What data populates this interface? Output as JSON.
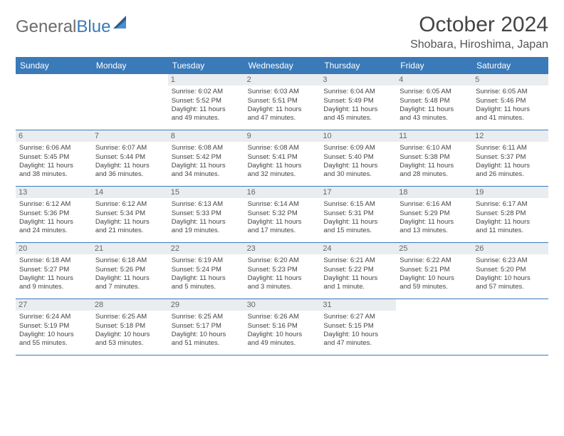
{
  "logo": {
    "word1": "General",
    "word2": "Blue"
  },
  "title": "October 2024",
  "location": "Shobara, Hiroshima, Japan",
  "colors": {
    "header_bg": "#3a7ab8",
    "header_text": "#ffffff",
    "daynum_bg": "#e9edf0",
    "daynum_text": "#666666",
    "cell_text": "#444444",
    "rule": "#3a7ab8",
    "logo_gray": "#6b6b6b",
    "logo_blue": "#3a7ab8",
    "page_bg": "#ffffff"
  },
  "day_names": [
    "Sunday",
    "Monday",
    "Tuesday",
    "Wednesday",
    "Thursday",
    "Friday",
    "Saturday"
  ],
  "weeks": [
    [
      null,
      null,
      {
        "n": "1",
        "sr": "Sunrise: 6:02 AM",
        "ss": "Sunset: 5:52 PM",
        "d1": "Daylight: 11 hours",
        "d2": "and 49 minutes."
      },
      {
        "n": "2",
        "sr": "Sunrise: 6:03 AM",
        "ss": "Sunset: 5:51 PM",
        "d1": "Daylight: 11 hours",
        "d2": "and 47 minutes."
      },
      {
        "n": "3",
        "sr": "Sunrise: 6:04 AM",
        "ss": "Sunset: 5:49 PM",
        "d1": "Daylight: 11 hours",
        "d2": "and 45 minutes."
      },
      {
        "n": "4",
        "sr": "Sunrise: 6:05 AM",
        "ss": "Sunset: 5:48 PM",
        "d1": "Daylight: 11 hours",
        "d2": "and 43 minutes."
      },
      {
        "n": "5",
        "sr": "Sunrise: 6:05 AM",
        "ss": "Sunset: 5:46 PM",
        "d1": "Daylight: 11 hours",
        "d2": "and 41 minutes."
      }
    ],
    [
      {
        "n": "6",
        "sr": "Sunrise: 6:06 AM",
        "ss": "Sunset: 5:45 PM",
        "d1": "Daylight: 11 hours",
        "d2": "and 38 minutes."
      },
      {
        "n": "7",
        "sr": "Sunrise: 6:07 AM",
        "ss": "Sunset: 5:44 PM",
        "d1": "Daylight: 11 hours",
        "d2": "and 36 minutes."
      },
      {
        "n": "8",
        "sr": "Sunrise: 6:08 AM",
        "ss": "Sunset: 5:42 PM",
        "d1": "Daylight: 11 hours",
        "d2": "and 34 minutes."
      },
      {
        "n": "9",
        "sr": "Sunrise: 6:08 AM",
        "ss": "Sunset: 5:41 PM",
        "d1": "Daylight: 11 hours",
        "d2": "and 32 minutes."
      },
      {
        "n": "10",
        "sr": "Sunrise: 6:09 AM",
        "ss": "Sunset: 5:40 PM",
        "d1": "Daylight: 11 hours",
        "d2": "and 30 minutes."
      },
      {
        "n": "11",
        "sr": "Sunrise: 6:10 AM",
        "ss": "Sunset: 5:38 PM",
        "d1": "Daylight: 11 hours",
        "d2": "and 28 minutes."
      },
      {
        "n": "12",
        "sr": "Sunrise: 6:11 AM",
        "ss": "Sunset: 5:37 PM",
        "d1": "Daylight: 11 hours",
        "d2": "and 26 minutes."
      }
    ],
    [
      {
        "n": "13",
        "sr": "Sunrise: 6:12 AM",
        "ss": "Sunset: 5:36 PM",
        "d1": "Daylight: 11 hours",
        "d2": "and 24 minutes."
      },
      {
        "n": "14",
        "sr": "Sunrise: 6:12 AM",
        "ss": "Sunset: 5:34 PM",
        "d1": "Daylight: 11 hours",
        "d2": "and 21 minutes."
      },
      {
        "n": "15",
        "sr": "Sunrise: 6:13 AM",
        "ss": "Sunset: 5:33 PM",
        "d1": "Daylight: 11 hours",
        "d2": "and 19 minutes."
      },
      {
        "n": "16",
        "sr": "Sunrise: 6:14 AM",
        "ss": "Sunset: 5:32 PM",
        "d1": "Daylight: 11 hours",
        "d2": "and 17 minutes."
      },
      {
        "n": "17",
        "sr": "Sunrise: 6:15 AM",
        "ss": "Sunset: 5:31 PM",
        "d1": "Daylight: 11 hours",
        "d2": "and 15 minutes."
      },
      {
        "n": "18",
        "sr": "Sunrise: 6:16 AM",
        "ss": "Sunset: 5:29 PM",
        "d1": "Daylight: 11 hours",
        "d2": "and 13 minutes."
      },
      {
        "n": "19",
        "sr": "Sunrise: 6:17 AM",
        "ss": "Sunset: 5:28 PM",
        "d1": "Daylight: 11 hours",
        "d2": "and 11 minutes."
      }
    ],
    [
      {
        "n": "20",
        "sr": "Sunrise: 6:18 AM",
        "ss": "Sunset: 5:27 PM",
        "d1": "Daylight: 11 hours",
        "d2": "and 9 minutes."
      },
      {
        "n": "21",
        "sr": "Sunrise: 6:18 AM",
        "ss": "Sunset: 5:26 PM",
        "d1": "Daylight: 11 hours",
        "d2": "and 7 minutes."
      },
      {
        "n": "22",
        "sr": "Sunrise: 6:19 AM",
        "ss": "Sunset: 5:24 PM",
        "d1": "Daylight: 11 hours",
        "d2": "and 5 minutes."
      },
      {
        "n": "23",
        "sr": "Sunrise: 6:20 AM",
        "ss": "Sunset: 5:23 PM",
        "d1": "Daylight: 11 hours",
        "d2": "and 3 minutes."
      },
      {
        "n": "24",
        "sr": "Sunrise: 6:21 AM",
        "ss": "Sunset: 5:22 PM",
        "d1": "Daylight: 11 hours",
        "d2": "and 1 minute."
      },
      {
        "n": "25",
        "sr": "Sunrise: 6:22 AM",
        "ss": "Sunset: 5:21 PM",
        "d1": "Daylight: 10 hours",
        "d2": "and 59 minutes."
      },
      {
        "n": "26",
        "sr": "Sunrise: 6:23 AM",
        "ss": "Sunset: 5:20 PM",
        "d1": "Daylight: 10 hours",
        "d2": "and 57 minutes."
      }
    ],
    [
      {
        "n": "27",
        "sr": "Sunrise: 6:24 AM",
        "ss": "Sunset: 5:19 PM",
        "d1": "Daylight: 10 hours",
        "d2": "and 55 minutes."
      },
      {
        "n": "28",
        "sr": "Sunrise: 6:25 AM",
        "ss": "Sunset: 5:18 PM",
        "d1": "Daylight: 10 hours",
        "d2": "and 53 minutes."
      },
      {
        "n": "29",
        "sr": "Sunrise: 6:25 AM",
        "ss": "Sunset: 5:17 PM",
        "d1": "Daylight: 10 hours",
        "d2": "and 51 minutes."
      },
      {
        "n": "30",
        "sr": "Sunrise: 6:26 AM",
        "ss": "Sunset: 5:16 PM",
        "d1": "Daylight: 10 hours",
        "d2": "and 49 minutes."
      },
      {
        "n": "31",
        "sr": "Sunrise: 6:27 AM",
        "ss": "Sunset: 5:15 PM",
        "d1": "Daylight: 10 hours",
        "d2": "and 47 minutes."
      },
      null,
      null
    ]
  ]
}
